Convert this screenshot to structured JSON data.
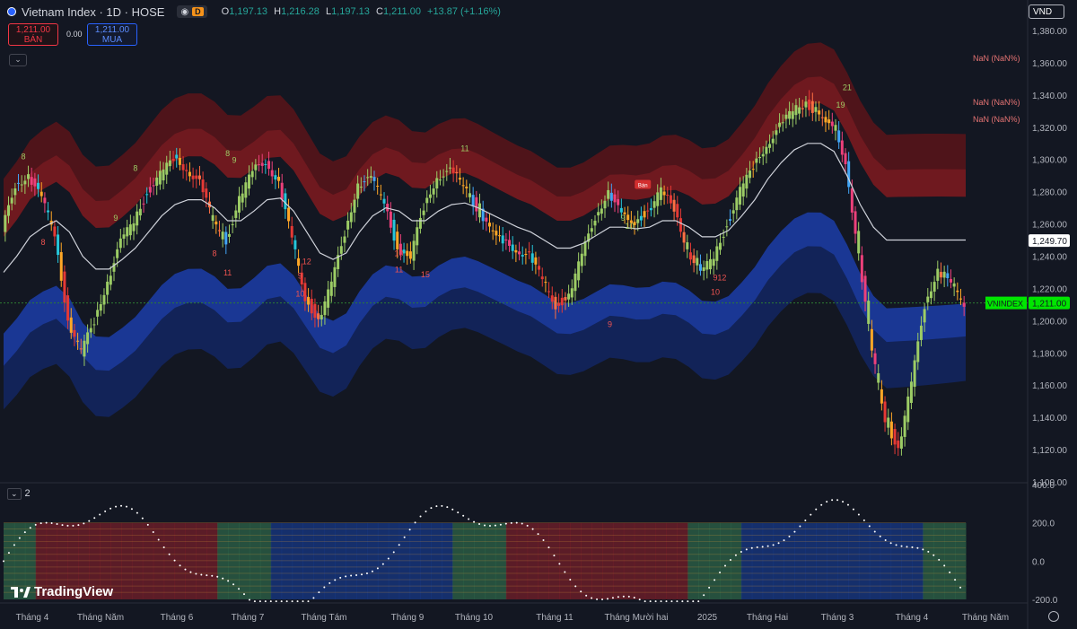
{
  "header": {
    "symbol": "Vietnam Index · 1D · HOSE",
    "ohlc": {
      "o_label": "O",
      "o": "1,197.13",
      "h_label": "H",
      "h": "1,216.28",
      "l_label": "L",
      "l": "1,197.13",
      "c_label": "C",
      "c": "1,211.00",
      "change": "+13.87 (+1.16%)"
    },
    "badge_d": "D"
  },
  "trade": {
    "sell_price": "1,211.00",
    "sell_label": "BÁN",
    "spread": "0.00",
    "buy_price": "1,211.00",
    "buy_label": "MUA"
  },
  "currency": "VND",
  "indicator2_label": "2",
  "logo": "TradingView",
  "colors": {
    "bg": "#131722",
    "grid": "#1e222d",
    "red_band": "#8b1e24",
    "blue_band": "#1e3fa8",
    "sma": "#cfd2da",
    "last_price": "#00e600",
    "tag_text": "#131722"
  },
  "chart_data": {
    "type": "candlestick",
    "yaxis": {
      "min": 1100,
      "max": 1380,
      "ticks": [
        1100,
        1120,
        1140,
        1160,
        1180,
        1200,
        1220,
        1240,
        1260,
        1280,
        1300,
        1320,
        1340,
        1360,
        1380
      ],
      "tick_labels": [
        "1,100.00",
        "1,120.00",
        "1,140.00",
        "1,160.00",
        "1,180.00",
        "1,200.00",
        "1,220.00",
        "1,240.00",
        "1,260.00",
        "1,280.00",
        "1,300.00",
        "1,320.00",
        "1,340.00",
        "1,360.00",
        "1,380.00"
      ]
    },
    "xaxis_labels": [
      "Tháng 4",
      "Tháng Năm",
      "Tháng 6",
      "Tháng 7",
      "Tháng Tám",
      "Tháng 9",
      "Tháng 10",
      "Tháng 11",
      "Tháng Mười hai",
      "2025",
      "Tháng Hai",
      "Tháng 3",
      "Tháng 4",
      "Tháng Năm"
    ],
    "price_path": [
      1255,
      1285,
      1290,
      1275,
      1255,
      1200,
      1180,
      1200,
      1225,
      1248,
      1262,
      1280,
      1290,
      1300,
      1295,
      1285,
      1262,
      1250,
      1275,
      1292,
      1300,
      1285,
      1250,
      1215,
      1200,
      1222,
      1255,
      1285,
      1287,
      1275,
      1245,
      1240,
      1270,
      1290,
      1292,
      1285,
      1270,
      1258,
      1248,
      1245,
      1240,
      1225,
      1210,
      1215,
      1240,
      1265,
      1280,
      1265,
      1262,
      1268,
      1280,
      1270,
      1245,
      1228,
      1240,
      1260,
      1280,
      1295,
      1310,
      1320,
      1330,
      1335,
      1328,
      1320,
      1300,
      1240,
      1180,
      1140,
      1120,
      1160,
      1210,
      1232,
      1221,
      1211
    ],
    "sma_path": [
      1230,
      1240,
      1252,
      1258,
      1262,
      1255,
      1240,
      1232,
      1232,
      1238,
      1245,
      1255,
      1265,
      1272,
      1275,
      1275,
      1270,
      1262,
      1262,
      1268,
      1275,
      1276,
      1268,
      1255,
      1242,
      1238,
      1242,
      1255,
      1265,
      1270,
      1268,
      1262,
      1262,
      1268,
      1272,
      1273,
      1270,
      1266,
      1262,
      1258,
      1255,
      1250,
      1245,
      1245,
      1248,
      1253,
      1258,
      1258,
      1257,
      1258,
      1262,
      1262,
      1258,
      1252,
      1252,
      1256,
      1265,
      1275,
      1288,
      1298,
      1306,
      1310,
      1310,
      1305,
      1290,
      1272,
      1258,
      1250
    ],
    "price_tags": [
      {
        "label": "",
        "value": "1,249.70",
        "price": 1249.7,
        "style": "white"
      },
      {
        "label": "VNINDEX",
        "value": "1,211.00",
        "price": 1211,
        "style": "green"
      }
    ],
    "band_labels": [
      "NaN (NaN%)",
      "NaN (NaN%)",
      "NaN (NaN%)"
    ],
    "count_labels": [
      {
        "t": "8",
        "i": 1.5,
        "p": 1300,
        "c": "g"
      },
      {
        "t": "8",
        "i": 3,
        "p": 1247,
        "c": "r"
      },
      {
        "t": "9",
        "i": 8.5,
        "p": 1262,
        "c": "g"
      },
      {
        "t": "8",
        "i": 10,
        "p": 1293,
        "c": "g"
      },
      {
        "t": "8",
        "i": 16,
        "p": 1240,
        "c": "r"
      },
      {
        "t": "8",
        "i": 17,
        "p": 1302,
        "c": "g"
      },
      {
        "t": "9",
        "i": 17.5,
        "p": 1298,
        "c": "g"
      },
      {
        "t": "11",
        "i": 17,
        "p": 1228,
        "c": "r"
      },
      {
        "t": "9",
        "i": 22.5,
        "p": 1226,
        "c": "r"
      },
      {
        "t": "12",
        "i": 23,
        "p": 1235,
        "c": "r"
      },
      {
        "t": "10",
        "i": 22.5,
        "p": 1215,
        "c": "r"
      },
      {
        "t": "10",
        "i": 30,
        "p": 1240,
        "c": "r"
      },
      {
        "t": "11",
        "i": 30,
        "p": 1230,
        "c": "r"
      },
      {
        "t": "15",
        "i": 32,
        "p": 1227,
        "c": "r"
      },
      {
        "t": "11",
        "i": 35,
        "p": 1305,
        "c": "g"
      },
      {
        "t": "9",
        "i": 46,
        "p": 1196,
        "c": "r"
      },
      {
        "t": "9",
        "i": 47,
        "p": 1262,
        "c": "g"
      },
      {
        "t": "10",
        "i": 47.5,
        "p": 1257,
        "c": "g"
      },
      {
        "t": "9",
        "i": 54,
        "p": 1225,
        "c": "r"
      },
      {
        "t": "12",
        "i": 54.5,
        "p": 1225,
        "c": "r"
      },
      {
        "t": "10",
        "i": 54,
        "p": 1216,
        "c": "r"
      },
      {
        "t": "21",
        "i": 64,
        "p": 1343,
        "c": "g"
      },
      {
        "t": "19",
        "i": 63.5,
        "p": 1332,
        "c": "g"
      }
    ],
    "signal_tags": [
      {
        "t": "Bán",
        "i": 48.5,
        "p": 1284
      }
    ]
  }
}
